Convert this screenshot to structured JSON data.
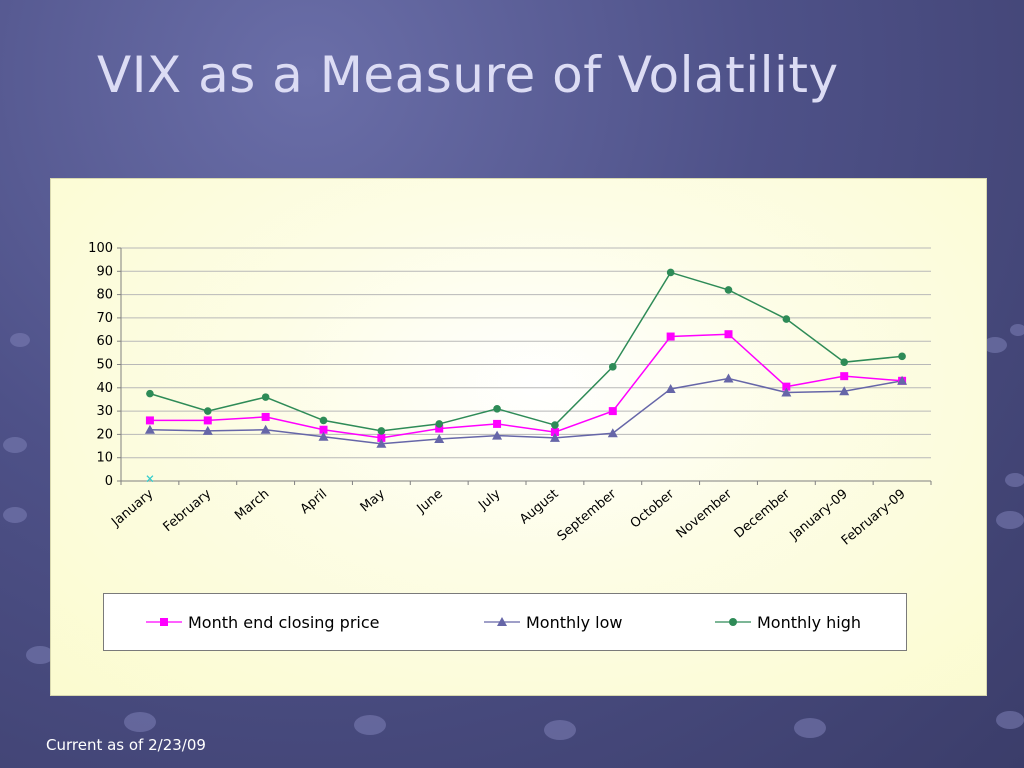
{
  "slide": {
    "title": "VIX as a Measure of Volatility",
    "footer": "Current as of 2/23/09"
  },
  "colors": {
    "closing": "#ff00ff",
    "low": "#6666a8",
    "high": "#2e8b57",
    "stray_marker": "#33cccc"
  },
  "icons": {
    "closing": "square-marker",
    "low": "triangle-marker",
    "high": "circle-marker",
    "stray": "x-marker"
  },
  "chart_data": {
    "type": "line",
    "title": "",
    "xlabel": "",
    "ylabel": "",
    "ylim": [
      0,
      100
    ],
    "yticks": [
      0,
      10,
      20,
      30,
      40,
      50,
      60,
      70,
      80,
      90,
      100
    ],
    "grid": true,
    "legend_position": "bottom",
    "categories": [
      "January",
      "February",
      "March",
      "April",
      "May",
      "June",
      "July",
      "August",
      "September",
      "October",
      "November",
      "December",
      "January-09",
      "February-09"
    ],
    "series": [
      {
        "name": "Month end closing price",
        "color": "#ff00ff",
        "marker": "square",
        "values": [
          26,
          26,
          27.5,
          22,
          18.5,
          22.5,
          24.5,
          21,
          30,
          62,
          63,
          40.5,
          45,
          43
        ]
      },
      {
        "name": "Monthly low",
        "color": "#6666a8",
        "marker": "triangle",
        "values": [
          22,
          21.5,
          22,
          19,
          16,
          18,
          19.5,
          18.5,
          20.5,
          39.5,
          44,
          38,
          38.5,
          43
        ]
      },
      {
        "name": "Monthly high",
        "color": "#2e8b57",
        "marker": "circle",
        "values": [
          37.5,
          30,
          36,
          26,
          21.5,
          24.5,
          31,
          24,
          49,
          89.5,
          82,
          69.5,
          51,
          53.5
        ]
      }
    ],
    "annotations": [
      {
        "category": "January",
        "value": 1,
        "marker": "x"
      }
    ]
  }
}
